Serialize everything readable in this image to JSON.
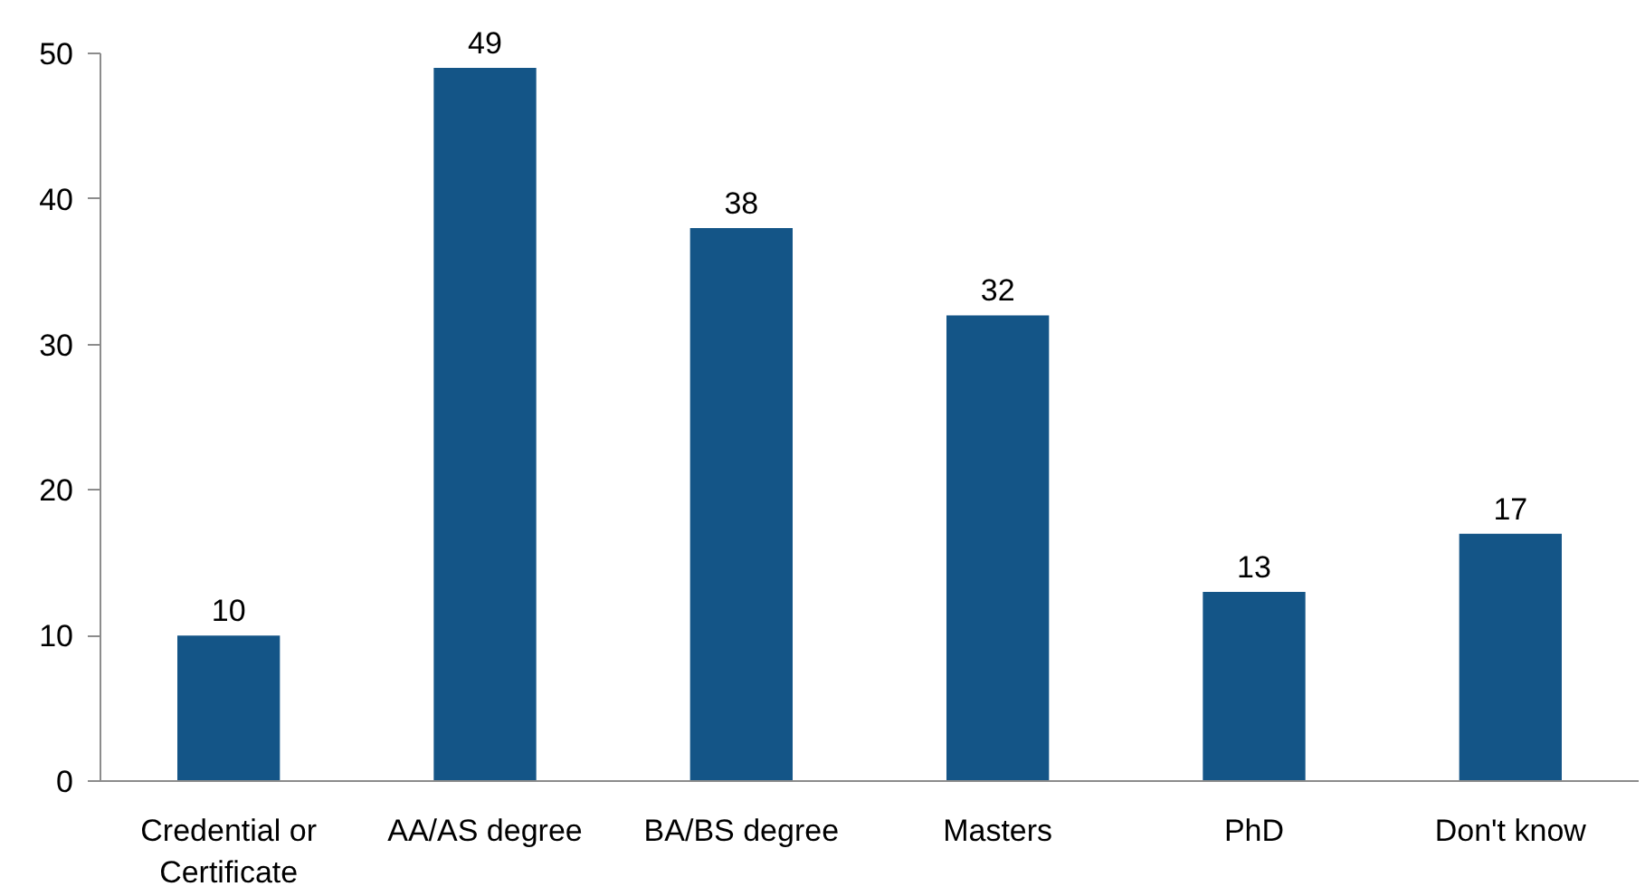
{
  "chart_data": {
    "type": "bar",
    "categories": [
      "Credential or Certificate",
      "AA/AS degree",
      "BA/BS degree",
      "Masters",
      "PhD",
      "Don't know"
    ],
    "values": [
      10,
      49,
      38,
      32,
      13,
      17
    ],
    "color": "#145587",
    "ylim": [
      0,
      50
    ],
    "yticks": [
      0,
      10,
      20,
      30,
      40,
      50
    ],
    "grid": false,
    "data_labels": true
  }
}
